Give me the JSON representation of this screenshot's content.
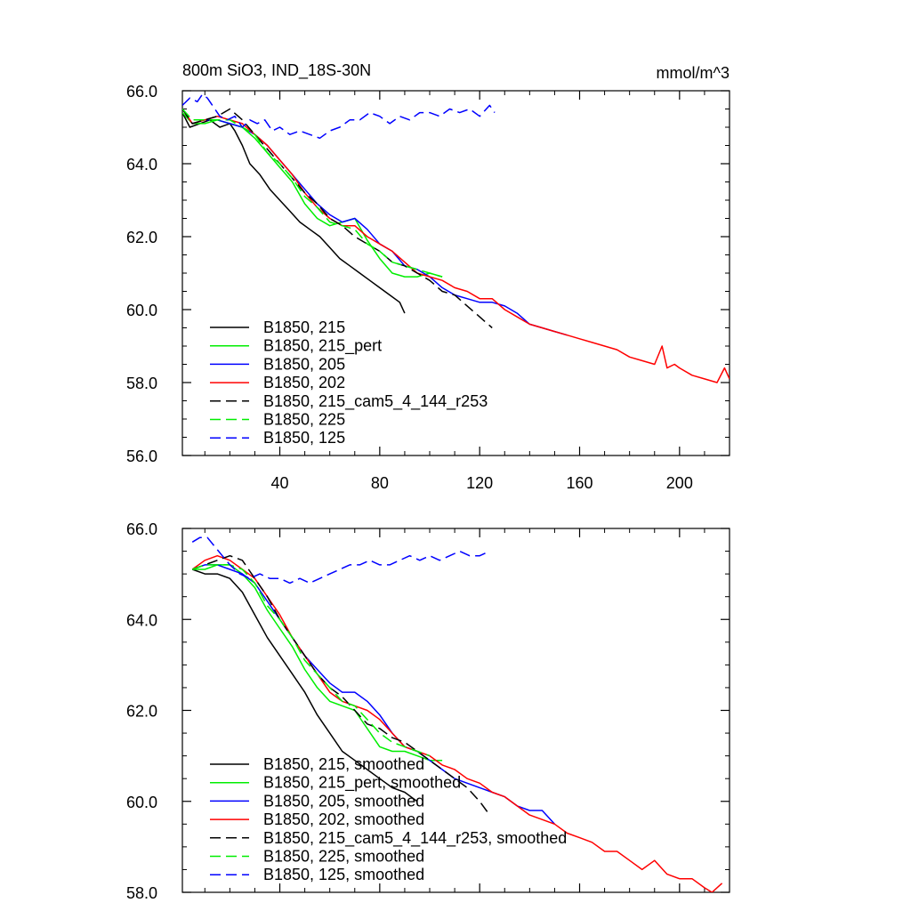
{
  "title_left": "800m SiO3, IND_18S-30N",
  "title_right": "mmol/m^3",
  "chart_data": [
    {
      "type": "line",
      "panel": "top",
      "xlim": [
        1,
        220
      ],
      "ylim": [
        56.0,
        66.0
      ],
      "xticks": [
        40,
        80,
        120,
        160,
        200
      ],
      "xtick_labels": [
        "40",
        "80",
        "120",
        "160",
        "200"
      ],
      "yticks": [
        56,
        58,
        60,
        62,
        64,
        66
      ],
      "ytick_labels": [
        "56.0",
        "58.0",
        "60.0",
        "62.0",
        "64.0",
        "66.0"
      ],
      "legend_position": "bottom-left",
      "series": [
        {
          "name": "B1850, 215",
          "color": "#000000",
          "dash": "solid",
          "x": [
            1,
            4,
            8,
            12,
            16,
            20,
            22,
            25,
            28,
            32,
            36,
            40,
            44,
            48,
            52,
            56,
            60,
            64,
            68,
            72,
            76,
            80,
            84,
            88,
            90
          ],
          "y": [
            65.4,
            65.0,
            65.1,
            65.2,
            65.0,
            65.1,
            64.9,
            64.5,
            64.0,
            63.7,
            63.3,
            63.0,
            62.7,
            62.4,
            62.2,
            62.0,
            61.7,
            61.4,
            61.2,
            61.0,
            60.8,
            60.6,
            60.4,
            60.2,
            59.9
          ]
        },
        {
          "name": "B1850, 215_pert",
          "color": "#00ee00",
          "dash": "solid",
          "x": [
            1,
            5,
            10,
            15,
            20,
            25,
            30,
            35,
            40,
            45,
            50,
            55,
            60,
            65,
            70,
            75,
            80,
            85,
            90,
            95,
            100,
            105
          ],
          "y": [
            65.4,
            65.1,
            65.1,
            65.2,
            65.1,
            65.0,
            64.7,
            64.3,
            63.9,
            63.5,
            62.9,
            62.5,
            62.3,
            62.4,
            62.5,
            61.9,
            61.4,
            61.0,
            60.9,
            60.9,
            61.0,
            60.9
          ]
        },
        {
          "name": "B1850, 205",
          "color": "#0000ff",
          "dash": "solid",
          "x": [
            1,
            5,
            10,
            15,
            20,
            25,
            30,
            35,
            40,
            45,
            50,
            55,
            60,
            65,
            70,
            75,
            80,
            85,
            90,
            95,
            100,
            105,
            110,
            115,
            120,
            125,
            130,
            135,
            140,
            145,
            150,
            155
          ],
          "y": [
            65.5,
            65.1,
            65.2,
            65.2,
            65.1,
            65.0,
            64.8,
            64.5,
            64.1,
            63.7,
            63.3,
            62.9,
            62.6,
            62.4,
            62.5,
            62.2,
            61.8,
            61.6,
            61.2,
            61.1,
            60.9,
            60.6,
            60.4,
            60.3,
            60.2,
            60.2,
            60.1,
            59.9,
            59.6,
            59.5,
            59.4,
            59.3
          ]
        },
        {
          "name": "B1850, 202",
          "color": "#ff0000",
          "dash": "solid",
          "x": [
            1,
            5,
            10,
            15,
            20,
            25,
            30,
            35,
            40,
            45,
            50,
            55,
            60,
            65,
            70,
            75,
            80,
            85,
            90,
            95,
            100,
            105,
            110,
            115,
            120,
            125,
            130,
            135,
            140,
            145,
            150,
            155,
            160,
            165,
            170,
            175,
            180,
            185,
            190,
            193,
            195,
            198,
            200,
            205,
            210,
            215,
            218,
            220
          ],
          "y": [
            65.5,
            65.1,
            65.2,
            65.3,
            65.2,
            65.1,
            64.8,
            64.5,
            64.1,
            63.7,
            63.2,
            62.8,
            62.5,
            62.3,
            62.3,
            62.0,
            61.8,
            61.6,
            61.3,
            61.0,
            60.9,
            60.8,
            60.6,
            60.5,
            60.3,
            60.3,
            60.0,
            59.8,
            59.6,
            59.5,
            59.4,
            59.3,
            59.2,
            59.1,
            59.0,
            58.9,
            58.7,
            58.6,
            58.5,
            59.0,
            58.4,
            58.5,
            58.4,
            58.2,
            58.1,
            58.0,
            58.4,
            58.1
          ]
        },
        {
          "name": "B1850, 215_cam5_4_144_r253",
          "color": "#000000",
          "dash": "dashed",
          "x": [
            1,
            5,
            10,
            15,
            20,
            25,
            30,
            35,
            40,
            45,
            50,
            55,
            60,
            65,
            70,
            75,
            80,
            85,
            90,
            95,
            100,
            105,
            110,
            115,
            120,
            125
          ],
          "y": [
            65.5,
            65.1,
            65.2,
            65.3,
            65.5,
            65.2,
            64.8,
            64.4,
            64.0,
            63.6,
            63.2,
            62.9,
            62.5,
            62.3,
            62.0,
            61.8,
            61.6,
            61.3,
            61.2,
            61.0,
            60.8,
            60.5,
            60.4,
            60.1,
            59.8,
            59.5
          ]
        },
        {
          "name": "B1850, 225",
          "color": "#00ee00",
          "dash": "dashed",
          "x": [
            1,
            5,
            10,
            15,
            20,
            25,
            30,
            35,
            40,
            45,
            50,
            55,
            60,
            65,
            70,
            75,
            80,
            85,
            90,
            95,
            100,
            105
          ],
          "y": [
            65.5,
            65.2,
            65.2,
            65.2,
            65.2,
            65.0,
            64.8,
            64.3,
            64.0,
            63.6,
            63.1,
            62.8,
            62.4,
            62.3,
            62.2,
            61.8,
            61.6,
            61.3,
            61.2,
            61.1,
            61.0,
            60.9
          ]
        },
        {
          "name": "B1850, 125",
          "color": "#0000ff",
          "dash": "dashed",
          "x": [
            1,
            4,
            7,
            9,
            11,
            14,
            16,
            19,
            22,
            25,
            28,
            31,
            34,
            37,
            40,
            44,
            48,
            52,
            56,
            60,
            64,
            68,
            72,
            76,
            80,
            84,
            88,
            92,
            96,
            100,
            104,
            108,
            112,
            116,
            120,
            124,
            126
          ],
          "y": [
            65.6,
            65.8,
            65.7,
            65.9,
            65.8,
            65.5,
            65.3,
            65.2,
            65.3,
            65.0,
            65.2,
            65.1,
            65.2,
            64.9,
            65.0,
            64.8,
            64.9,
            64.8,
            64.7,
            64.9,
            65.0,
            65.2,
            65.2,
            65.4,
            65.3,
            65.1,
            65.3,
            65.2,
            65.4,
            65.4,
            65.3,
            65.5,
            65.4,
            65.5,
            65.3,
            65.6,
            65.4
          ]
        }
      ]
    },
    {
      "type": "line",
      "panel": "bottom",
      "xlim": [
        1,
        220
      ],
      "ylim": [
        58.0,
        66.0
      ],
      "xticks": [
        40,
        80,
        120,
        160,
        200
      ],
      "yticks": [
        58,
        60,
        62,
        64,
        66
      ],
      "ytick_labels": [
        "58.0",
        "60.0",
        "62.0",
        "64.0",
        "66.0"
      ],
      "legend_position": "bottom-left",
      "series": [
        {
          "name": "B1850, 215, smoothed",
          "color": "#000000",
          "dash": "solid",
          "x": [
            5,
            10,
            15,
            20,
            25,
            30,
            35,
            40,
            45,
            50,
            55,
            60,
            65,
            70,
            75,
            80,
            85,
            90,
            95
          ],
          "y": [
            65.1,
            65.0,
            65.0,
            64.9,
            64.6,
            64.1,
            63.6,
            63.2,
            62.8,
            62.4,
            61.9,
            61.5,
            61.1,
            60.9,
            60.7,
            60.5,
            60.3,
            60.2,
            60.0
          ]
        },
        {
          "name": "B1850, 215_pert, smoothed",
          "color": "#00ee00",
          "dash": "solid",
          "x": [
            5,
            10,
            15,
            20,
            25,
            30,
            35,
            40,
            45,
            50,
            55,
            60,
            65,
            70,
            75,
            80,
            85,
            90,
            95,
            100,
            105
          ],
          "y": [
            65.1,
            65.1,
            65.2,
            65.2,
            65.0,
            64.7,
            64.2,
            63.8,
            63.4,
            62.9,
            62.5,
            62.2,
            62.1,
            62.0,
            61.6,
            61.2,
            61.1,
            61.1,
            61.0,
            60.9,
            60.9
          ]
        },
        {
          "name": "B1850, 205, smoothed",
          "color": "#0000ff",
          "dash": "solid",
          "x": [
            5,
            10,
            15,
            20,
            25,
            30,
            35,
            40,
            45,
            50,
            55,
            60,
            65,
            70,
            75,
            80,
            85,
            90,
            95,
            100,
            105,
            110,
            115,
            120,
            125,
            130,
            135,
            140,
            145,
            150
          ],
          "y": [
            65.1,
            65.2,
            65.2,
            65.1,
            65.0,
            64.8,
            64.4,
            64.0,
            63.6,
            63.2,
            62.9,
            62.6,
            62.4,
            62.4,
            62.2,
            61.9,
            61.5,
            61.2,
            61.1,
            60.9,
            60.7,
            60.5,
            60.4,
            60.3,
            60.2,
            60.1,
            59.9,
            59.8,
            59.8,
            59.5
          ]
        },
        {
          "name": "B1850, 202, smoothed",
          "color": "#ff0000",
          "dash": "solid",
          "x": [
            5,
            10,
            15,
            20,
            25,
            30,
            35,
            40,
            45,
            50,
            55,
            60,
            65,
            70,
            75,
            80,
            85,
            90,
            95,
            100,
            105,
            110,
            115,
            120,
            125,
            130,
            135,
            140,
            145,
            150,
            155,
            160,
            165,
            170,
            175,
            180,
            185,
            190,
            195,
            200,
            205,
            210,
            213,
            217
          ],
          "y": [
            65.1,
            65.3,
            65.4,
            65.3,
            65.1,
            64.9,
            64.5,
            64.1,
            63.6,
            63.2,
            62.8,
            62.4,
            62.2,
            62.1,
            62.0,
            61.8,
            61.5,
            61.2,
            61.1,
            61.0,
            60.8,
            60.7,
            60.5,
            60.4,
            60.2,
            60.1,
            59.9,
            59.7,
            59.6,
            59.5,
            59.3,
            59.2,
            59.1,
            58.9,
            58.9,
            58.7,
            58.5,
            58.7,
            58.4,
            58.3,
            58.3,
            58.1,
            58.0,
            58.2
          ]
        },
        {
          "name": "B1850, 215_cam5_4_144_r253, smoothed",
          "color": "#000000",
          "dash": "dashed",
          "x": [
            5,
            10,
            15,
            20,
            25,
            30,
            35,
            40,
            45,
            50,
            55,
            60,
            65,
            70,
            75,
            80,
            85,
            90,
            95,
            100,
            105,
            110,
            115,
            120,
            124
          ],
          "y": [
            65.1,
            65.2,
            65.3,
            65.4,
            65.3,
            64.9,
            64.5,
            64.0,
            63.6,
            63.2,
            62.8,
            62.5,
            62.3,
            62.0,
            61.7,
            61.6,
            61.4,
            61.3,
            61.1,
            60.9,
            60.7,
            60.5,
            60.3,
            60.0,
            59.7
          ]
        },
        {
          "name": "B1850, 225, smoothed",
          "color": "#00ee00",
          "dash": "dashed",
          "x": [
            5,
            10,
            15,
            20,
            25,
            30,
            35,
            40,
            45,
            50,
            55,
            60,
            65,
            70,
            75,
            80,
            85,
            90,
            95,
            100
          ],
          "y": [
            65.1,
            65.2,
            65.2,
            65.2,
            65.1,
            64.8,
            64.3,
            64.0,
            63.6,
            63.1,
            62.8,
            62.5,
            62.2,
            62.1,
            61.8,
            61.5,
            61.3,
            61.2,
            61.1,
            61.0
          ]
        },
        {
          "name": "B1850, 125, smoothed",
          "color": "#0000ff",
          "dash": "dashed",
          "x": [
            5,
            8,
            11,
            14,
            17,
            20,
            24,
            28,
            32,
            36,
            40,
            44,
            48,
            52,
            56,
            60,
            64,
            68,
            72,
            76,
            80,
            84,
            88,
            92,
            96,
            100,
            104,
            108,
            112,
            116,
            120,
            124
          ],
          "y": [
            65.7,
            65.8,
            65.8,
            65.6,
            65.4,
            65.2,
            65.0,
            64.9,
            65.0,
            64.9,
            64.9,
            64.8,
            64.9,
            64.8,
            64.9,
            65.0,
            65.1,
            65.2,
            65.2,
            65.3,
            65.2,
            65.2,
            65.3,
            65.4,
            65.3,
            65.4,
            65.3,
            65.4,
            65.5,
            65.4,
            65.4,
            65.5
          ]
        }
      ]
    }
  ]
}
